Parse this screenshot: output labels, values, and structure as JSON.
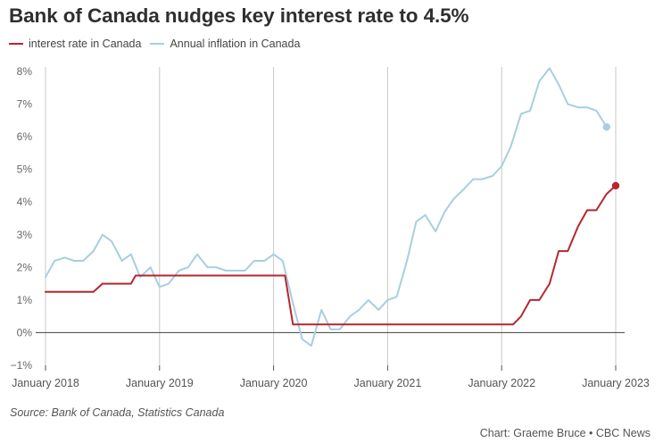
{
  "title": "Bank of Canada nudges key interest rate to 4.5%",
  "source": "Source: Bank of Canada, Statistics Canada",
  "credit": "Chart: Graeme Bruce • CBC News",
  "chart_data": {
    "type": "line",
    "title": "Bank of Canada nudges key interest rate to 4.5%",
    "xlabel": "",
    "ylabel": "",
    "ylim": [
      -1,
      8
    ],
    "yticks": [
      -1,
      0,
      1,
      2,
      3,
      4,
      5,
      6,
      7,
      8
    ],
    "ytick_labels": [
      "−1%",
      "0%",
      "1%",
      "2%",
      "3%",
      "4%",
      "5%",
      "6%",
      "7%",
      "8%"
    ],
    "xlim": [
      2018.0,
      2023.08
    ],
    "xticks": [
      2018,
      2019,
      2020,
      2021,
      2022,
      2023
    ],
    "xtick_labels": [
      "January 2018",
      "January 2019",
      "January 2020",
      "January 2021",
      "January 2022",
      "January 2023"
    ],
    "legend_position": "top-left",
    "grid": "vertical",
    "series": [
      {
        "name": "interest rate in Canada",
        "color": "#b5272d",
        "end_marker": true,
        "points": [
          [
            2018.0,
            1.25
          ],
          [
            2018.42,
            1.25
          ],
          [
            2018.5,
            1.5
          ],
          [
            2018.75,
            1.5
          ],
          [
            2018.79,
            1.75
          ],
          [
            2020.1,
            1.75
          ],
          [
            2020.17,
            0.25
          ],
          [
            2022.1,
            0.25
          ],
          [
            2022.17,
            0.5
          ],
          [
            2022.25,
            1.0
          ],
          [
            2022.33,
            1.0
          ],
          [
            2022.42,
            1.5
          ],
          [
            2022.5,
            2.5
          ],
          [
            2022.58,
            2.5
          ],
          [
            2022.67,
            3.25
          ],
          [
            2022.75,
            3.75
          ],
          [
            2022.83,
            3.75
          ],
          [
            2022.92,
            4.25
          ],
          [
            2023.0,
            4.5
          ]
        ]
      },
      {
        "name": "Annual inflation in Canada",
        "color": "#a7cfdf",
        "end_marker": true,
        "points": [
          [
            2018.0,
            1.7
          ],
          [
            2018.08,
            2.2
          ],
          [
            2018.17,
            2.3
          ],
          [
            2018.25,
            2.2
          ],
          [
            2018.33,
            2.2
          ],
          [
            2018.42,
            2.5
          ],
          [
            2018.5,
            3.0
          ],
          [
            2018.58,
            2.8
          ],
          [
            2018.67,
            2.2
          ],
          [
            2018.75,
            2.4
          ],
          [
            2018.83,
            1.7
          ],
          [
            2018.92,
            2.0
          ],
          [
            2019.0,
            1.4
          ],
          [
            2019.08,
            1.5
          ],
          [
            2019.17,
            1.9
          ],
          [
            2019.25,
            2.0
          ],
          [
            2019.33,
            2.4
          ],
          [
            2019.42,
            2.0
          ],
          [
            2019.5,
            2.0
          ],
          [
            2019.58,
            1.9
          ],
          [
            2019.67,
            1.9
          ],
          [
            2019.75,
            1.9
          ],
          [
            2019.83,
            2.2
          ],
          [
            2019.92,
            2.2
          ],
          [
            2020.0,
            2.4
          ],
          [
            2020.08,
            2.2
          ],
          [
            2020.17,
            0.9
          ],
          [
            2020.25,
            -0.2
          ],
          [
            2020.33,
            -0.4
          ],
          [
            2020.42,
            0.7
          ],
          [
            2020.5,
            0.1
          ],
          [
            2020.58,
            0.1
          ],
          [
            2020.67,
            0.5
          ],
          [
            2020.75,
            0.7
          ],
          [
            2020.83,
            1.0
          ],
          [
            2020.92,
            0.7
          ],
          [
            2021.0,
            1.0
          ],
          [
            2021.08,
            1.1
          ],
          [
            2021.17,
            2.2
          ],
          [
            2021.25,
            3.4
          ],
          [
            2021.33,
            3.6
          ],
          [
            2021.42,
            3.1
          ],
          [
            2021.5,
            3.7
          ],
          [
            2021.58,
            4.1
          ],
          [
            2021.67,
            4.4
          ],
          [
            2021.75,
            4.7
          ],
          [
            2021.83,
            4.7
          ],
          [
            2021.92,
            4.8
          ],
          [
            2022.0,
            5.1
          ],
          [
            2022.08,
            5.7
          ],
          [
            2022.17,
            6.7
          ],
          [
            2022.25,
            6.8
          ],
          [
            2022.33,
            7.7
          ],
          [
            2022.42,
            8.1
          ],
          [
            2022.5,
            7.6
          ],
          [
            2022.58,
            7.0
          ],
          [
            2022.67,
            6.9
          ],
          [
            2022.75,
            6.9
          ],
          [
            2022.83,
            6.8
          ],
          [
            2022.92,
            6.3
          ]
        ]
      }
    ]
  }
}
